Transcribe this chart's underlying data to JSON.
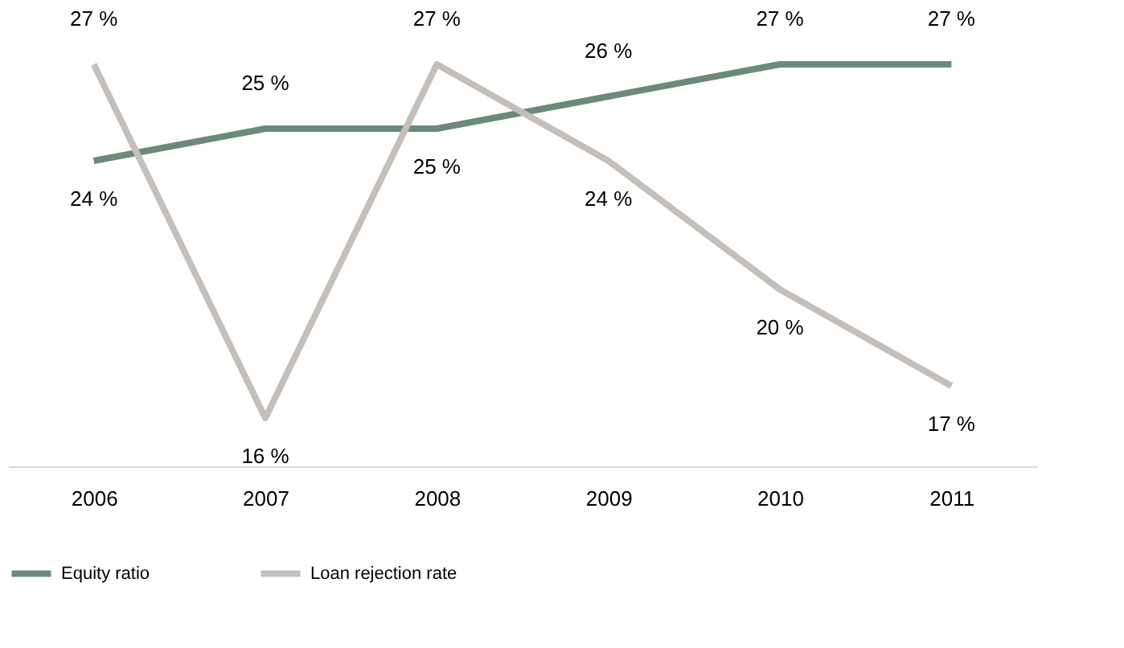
{
  "chart_data": {
    "type": "line",
    "categories": [
      "2006",
      "2007",
      "2008",
      "2009",
      "2010",
      "2011"
    ],
    "series": [
      {
        "name": "Equity ratio",
        "color": "#6b8a7a",
        "values": [
          24,
          25,
          25,
          26,
          27,
          27
        ],
        "value_labels": [
          "24 %",
          "25 %",
          "25 %",
          "26 %",
          "27 %",
          "27 %"
        ]
      },
      {
        "name": "Loan rejection rate",
        "color": "#c4bfba",
        "values": [
          27,
          16,
          27,
          24,
          20,
          17
        ],
        "value_labels": [
          "27 %",
          "16 %",
          "27 %",
          "24 %",
          "20 %",
          "17 %"
        ]
      }
    ],
    "legend": "bottom",
    "grid": false,
    "marker": "none",
    "line_style": "solid",
    "tick_labels": "x"
  }
}
